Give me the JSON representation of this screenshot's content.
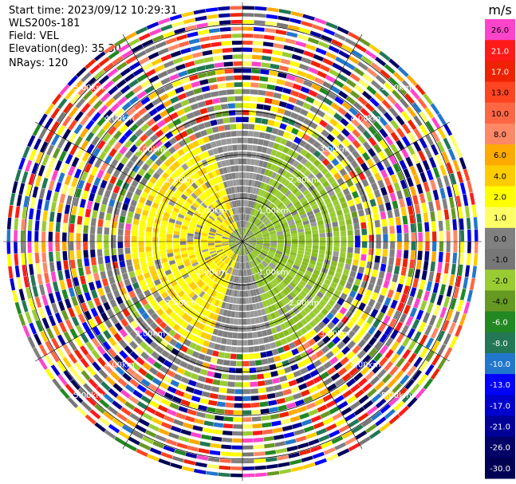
{
  "header": {
    "start_time": "Start time: 2023/09/12 10:29:31",
    "instrument": "WLS200s-181",
    "field": "Field: VEL",
    "elevation": "Elevation(deg): 35.30",
    "nrays": "NRays: 120"
  },
  "chart_data": {
    "type": "heatmap",
    "subtype": "polar-ppi",
    "field": "VEL",
    "instrument": "WLS200s-181",
    "start_time": "2023/09/12 10:29:31",
    "elevation_deg": 35.3,
    "n_rays": 120,
    "range_rings_km": [
      1,
      2,
      3,
      4,
      5
    ],
    "range_ring_labels": [
      "1.00km",
      "2.00km",
      "3.00km",
      "4.00km",
      "5.00km"
    ],
    "colorbar": {
      "unit_label": "m/s",
      "ticks": [
        "26.0",
        "21.0",
        "17.0",
        "13.0",
        "10.0",
        "8.0",
        "6.0",
        "4.0",
        "2.0",
        "1.0",
        "0.0",
        "-1.0",
        "-2.0",
        "-4.0",
        "-6.0",
        "-8.0",
        "-10.0",
        "-13.0",
        "-17.0",
        "-21.0",
        "-26.0",
        "-30.0"
      ],
      "colors": [
        "#ff44cc",
        "#ff1a1a",
        "#ee2200",
        "#ff4422",
        "#ff6644",
        "#ff8866",
        "#ffaa00",
        "#ffcc00",
        "#ffff00",
        "#ffff66",
        "#808080",
        "#777777",
        "#99cc33",
        "#669922",
        "#228822",
        "#227755",
        "#2277cc",
        "#0000ff",
        "#0000cc",
        "#000099",
        "#000066",
        "#000055"
      ]
    },
    "inner_pattern": "near-range zero-velocity gray; receding yellow (+1 to +4 m/s) west, approaching green (-1 to -4 m/s) east; outer ranges noisy multicolor",
    "grid": true
  },
  "colors": {
    "ring_line": "#000000",
    "spoke_line": "#000000",
    "ring_label": "#ffffff"
  }
}
